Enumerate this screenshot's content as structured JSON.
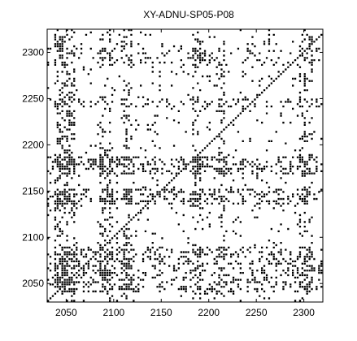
{
  "chart_data": {
    "type": "heatmap",
    "title": "XY-ADNU-SP05-P08",
    "xlabel": "",
    "ylabel": "",
    "xlim": [
      2030,
      2320
    ],
    "ylim": [
      2030,
      2325
    ],
    "x_ticks": [
      {
        "value": 2050,
        "label": "2050"
      },
      {
        "value": 2100,
        "label": "2100"
      },
      {
        "value": 2150,
        "label": "2150"
      },
      {
        "value": 2200,
        "label": "2200"
      },
      {
        "value": 2250,
        "label": "2250"
      },
      {
        "value": 2300,
        "label": "2300"
      }
    ],
    "y_ticks": [
      {
        "value": 2050,
        "label": "2050"
      },
      {
        "value": 2100,
        "label": "2100"
      },
      {
        "value": 2150,
        "label": "2150"
      },
      {
        "value": 2200,
        "label": "2200"
      },
      {
        "value": 2250,
        "label": "2250"
      },
      {
        "value": 2300,
        "label": "2300"
      }
    ],
    "grid": false,
    "legend": "none",
    "point_color": "#000000",
    "background_color": "#ffffff",
    "dense_bands": [
      {
        "axis": "y",
        "from": 2168,
        "to": 2188,
        "density": 0.55
      },
      {
        "axis": "y",
        "from": 2135,
        "to": 2152,
        "density": 0.55
      },
      {
        "axis": "y",
        "from": 2040,
        "to": 2090,
        "density": 0.45
      },
      {
        "axis": "y",
        "from": 2240,
        "to": 2250,
        "density": 0.3
      },
      {
        "axis": "y",
        "from": 2285,
        "to": 2310,
        "density": 0.25
      },
      {
        "axis": "x",
        "from": 2038,
        "to": 2060,
        "density": 0.45
      },
      {
        "axis": "x",
        "from": 2085,
        "to": 2100,
        "density": 0.35
      },
      {
        "axis": "x",
        "from": 2110,
        "to": 2120,
        "density": 0.3
      },
      {
        "axis": "x",
        "from": 2183,
        "to": 2192,
        "density": 0.35
      },
      {
        "axis": "x",
        "from": 2210,
        "to": 2218,
        "density": 0.3
      },
      {
        "axis": "x",
        "from": 2295,
        "to": 2310,
        "density": 0.35
      }
    ]
  }
}
